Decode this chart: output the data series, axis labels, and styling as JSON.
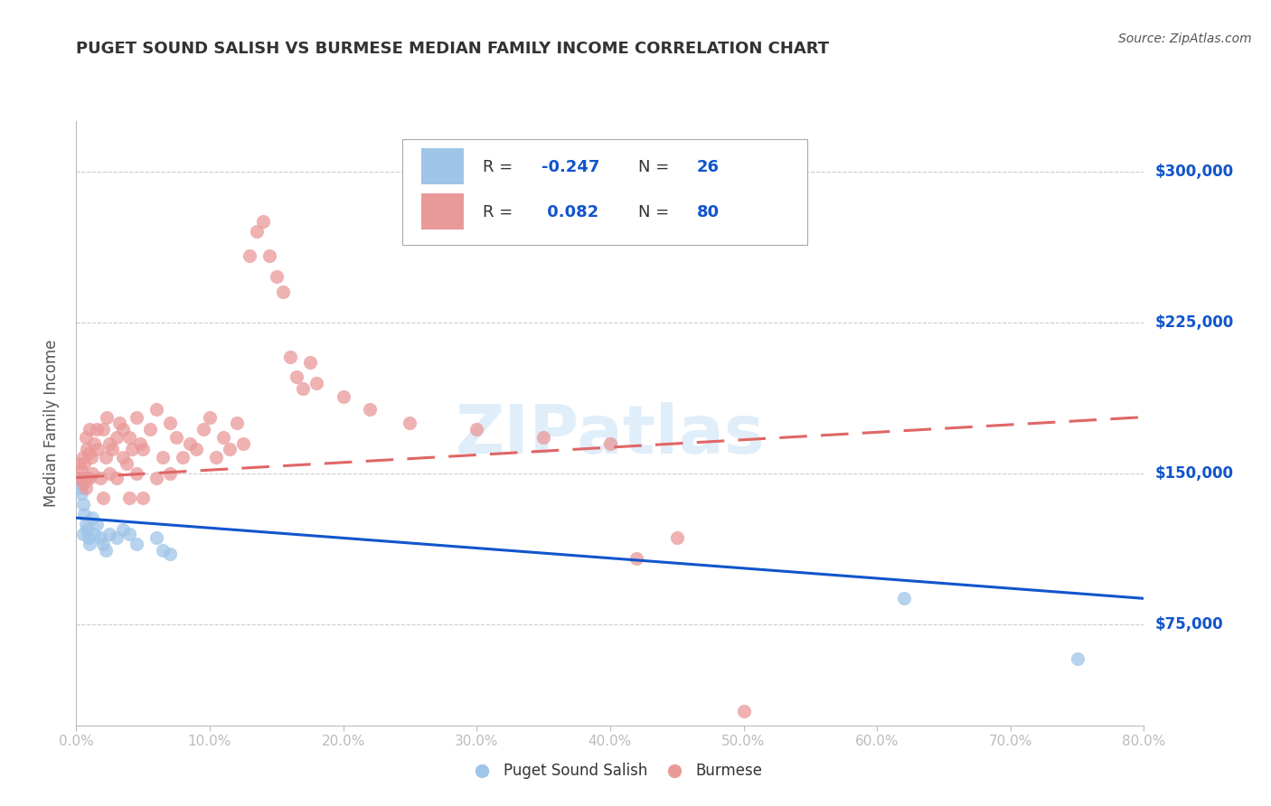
{
  "title": "PUGET SOUND SALISH VS BURMESE MEDIAN FAMILY INCOME CORRELATION CHART",
  "source": "Source: ZipAtlas.com",
  "ylabel": "Median Family Income",
  "y_ticks": [
    75000,
    150000,
    225000,
    300000
  ],
  "y_tick_labels": [
    "$75,000",
    "$150,000",
    "$225,000",
    "$300,000"
  ],
  "xlim": [
    0.0,
    0.8
  ],
  "ylim": [
    25000,
    325000
  ],
  "watermark": "ZIPatlas",
  "blue_color": "#9fc5e8",
  "pink_color": "#ea9999",
  "blue_line_color": "#1155cc",
  "pink_line_color": "#e06666",
  "title_color": "#333333",
  "source_color": "#555555",
  "blue_scatter": [
    [
      0.002,
      148000
    ],
    [
      0.003,
      143000
    ],
    [
      0.004,
      140000
    ],
    [
      0.005,
      120000
    ],
    [
      0.005,
      135000
    ],
    [
      0.006,
      130000
    ],
    [
      0.007,
      125000
    ],
    [
      0.008,
      122000
    ],
    [
      0.009,
      118000
    ],
    [
      0.01,
      115000
    ],
    [
      0.012,
      128000
    ],
    [
      0.013,
      120000
    ],
    [
      0.015,
      125000
    ],
    [
      0.018,
      118000
    ],
    [
      0.02,
      115000
    ],
    [
      0.022,
      112000
    ],
    [
      0.025,
      120000
    ],
    [
      0.03,
      118000
    ],
    [
      0.035,
      122000
    ],
    [
      0.04,
      120000
    ],
    [
      0.045,
      115000
    ],
    [
      0.06,
      118000
    ],
    [
      0.065,
      112000
    ],
    [
      0.07,
      110000
    ],
    [
      0.62,
      88000
    ],
    [
      0.75,
      58000
    ]
  ],
  "pink_scatter": [
    [
      0.002,
      155000
    ],
    [
      0.003,
      148000
    ],
    [
      0.004,
      152000
    ],
    [
      0.005,
      145000
    ],
    [
      0.005,
      158000
    ],
    [
      0.006,
      148000
    ],
    [
      0.006,
      155000
    ],
    [
      0.007,
      143000
    ],
    [
      0.007,
      168000
    ],
    [
      0.008,
      162000
    ],
    [
      0.008,
      148000
    ],
    [
      0.009,
      160000
    ],
    [
      0.01,
      148000
    ],
    [
      0.01,
      172000
    ],
    [
      0.011,
      158000
    ],
    [
      0.012,
      150000
    ],
    [
      0.013,
      165000
    ],
    [
      0.015,
      172000
    ],
    [
      0.016,
      162000
    ],
    [
      0.018,
      148000
    ],
    [
      0.02,
      172000
    ],
    [
      0.02,
      138000
    ],
    [
      0.022,
      158000
    ],
    [
      0.023,
      178000
    ],
    [
      0.025,
      165000
    ],
    [
      0.025,
      150000
    ],
    [
      0.027,
      162000
    ],
    [
      0.03,
      168000
    ],
    [
      0.03,
      148000
    ],
    [
      0.032,
      175000
    ],
    [
      0.035,
      158000
    ],
    [
      0.035,
      172000
    ],
    [
      0.038,
      155000
    ],
    [
      0.04,
      168000
    ],
    [
      0.04,
      138000
    ],
    [
      0.042,
      162000
    ],
    [
      0.045,
      178000
    ],
    [
      0.045,
      150000
    ],
    [
      0.048,
      165000
    ],
    [
      0.05,
      162000
    ],
    [
      0.05,
      138000
    ],
    [
      0.055,
      172000
    ],
    [
      0.06,
      182000
    ],
    [
      0.06,
      148000
    ],
    [
      0.065,
      158000
    ],
    [
      0.07,
      175000
    ],
    [
      0.07,
      150000
    ],
    [
      0.075,
      168000
    ],
    [
      0.08,
      158000
    ],
    [
      0.085,
      165000
    ],
    [
      0.09,
      162000
    ],
    [
      0.095,
      172000
    ],
    [
      0.1,
      178000
    ],
    [
      0.105,
      158000
    ],
    [
      0.11,
      168000
    ],
    [
      0.115,
      162000
    ],
    [
      0.12,
      175000
    ],
    [
      0.125,
      165000
    ],
    [
      0.13,
      258000
    ],
    [
      0.135,
      270000
    ],
    [
      0.14,
      275000
    ],
    [
      0.145,
      258000
    ],
    [
      0.15,
      248000
    ],
    [
      0.155,
      240000
    ],
    [
      0.16,
      208000
    ],
    [
      0.165,
      198000
    ],
    [
      0.17,
      192000
    ],
    [
      0.175,
      205000
    ],
    [
      0.18,
      195000
    ],
    [
      0.2,
      188000
    ],
    [
      0.22,
      182000
    ],
    [
      0.25,
      175000
    ],
    [
      0.3,
      172000
    ],
    [
      0.35,
      168000
    ],
    [
      0.4,
      165000
    ],
    [
      0.42,
      108000
    ],
    [
      0.45,
      118000
    ],
    [
      0.5,
      32000
    ]
  ],
  "blue_trendline": [
    [
      0.0,
      128000
    ],
    [
      0.8,
      88000
    ]
  ],
  "pink_trendline": [
    [
      0.0,
      148000
    ],
    [
      0.8,
      178000
    ]
  ]
}
